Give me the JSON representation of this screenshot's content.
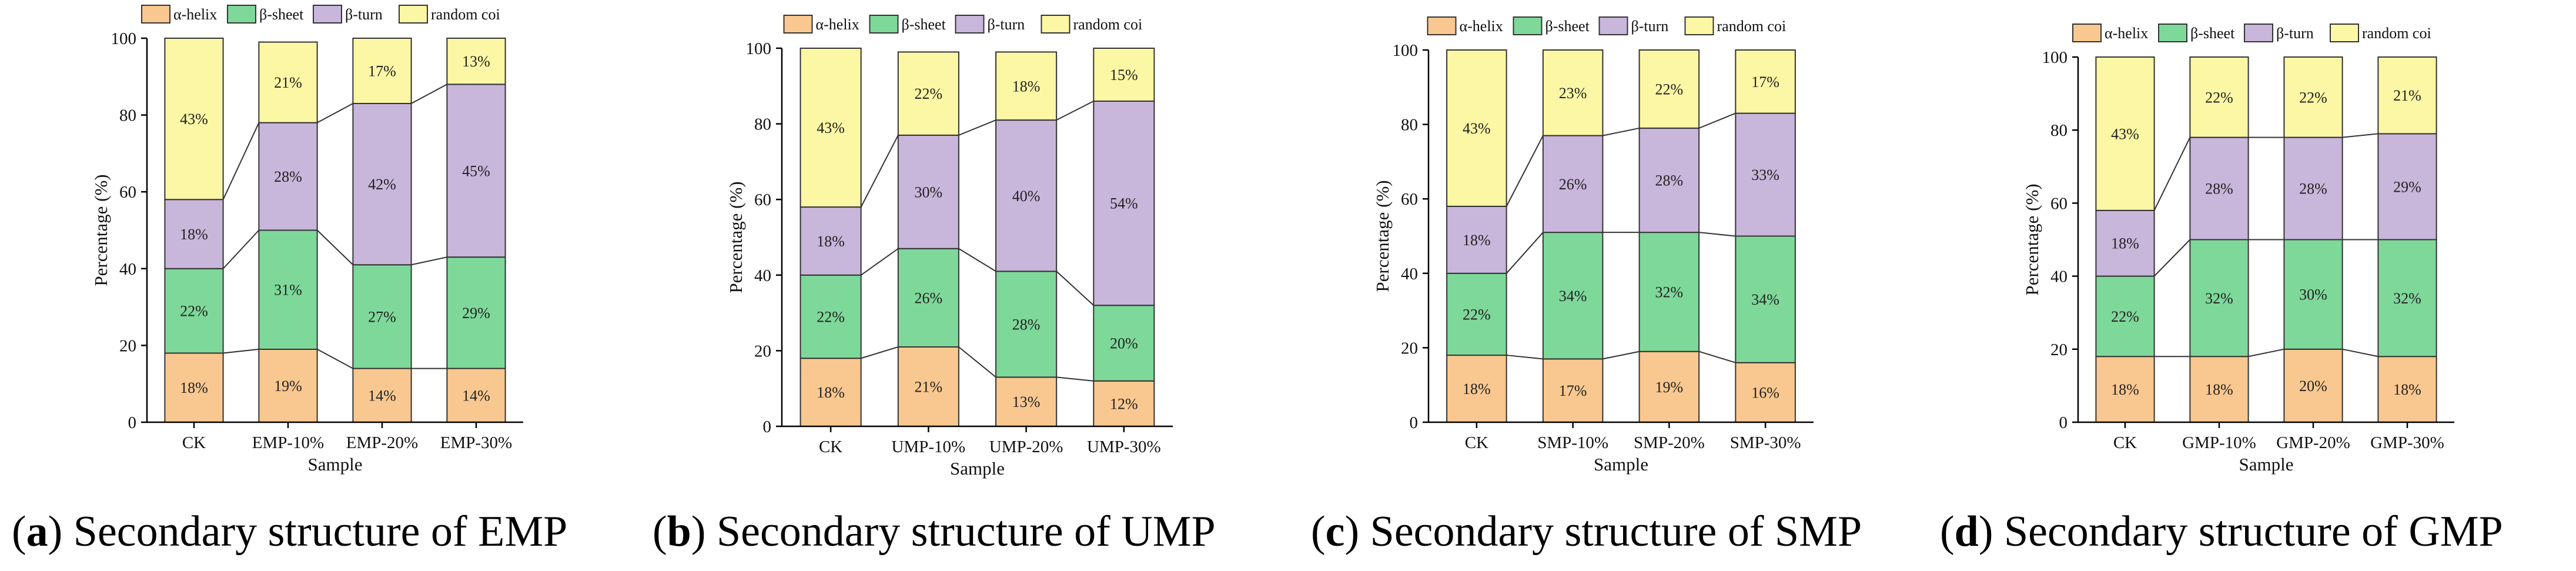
{
  "figure": {
    "captions": [
      {
        "letter": "a",
        "text": "Secondary structure of EMP"
      },
      {
        "letter": "b",
        "text": "Secondary structure of UMP"
      },
      {
        "letter": "c",
        "text": "Secondary structure of SMP"
      },
      {
        "letter": "d",
        "text": "Secondary structure of GMP"
      }
    ]
  },
  "colors": {
    "alpha_helix": "#F9C890",
    "beta_sheet": "#7ED89A",
    "beta_turn": "#C9B6DB",
    "random_coil": "#FBF7A4",
    "stroke": "#333333"
  },
  "legend_labels": [
    "α-helix",
    "β-sheet",
    "β-turn",
    "random coi"
  ],
  "chart_data": [
    {
      "type": "bar",
      "stacked": true,
      "title": "",
      "xlabel": "Sample",
      "ylabel": "Percentage (%)",
      "ylim": [
        0,
        100
      ],
      "yticks": [
        "0",
        "20",
        "40",
        "60",
        "80",
        "100"
      ],
      "categories": [
        "CK",
        "EMP-10%",
        "EMP-20%",
        "EMP-30%"
      ],
      "series": [
        {
          "name": "α-helix",
          "values": [
            18,
            19,
            14,
            14
          ],
          "labels": [
            "18%",
            "19%",
            "14%",
            "14%"
          ]
        },
        {
          "name": "β-sheet",
          "values": [
            22,
            31,
            27,
            29
          ],
          "labels": [
            "22%",
            "31%",
            "27%",
            "29%"
          ]
        },
        {
          "name": "β-turn",
          "values": [
            18,
            28,
            42,
            45
          ],
          "labels": [
            "18%",
            "28%",
            "42%",
            "45%"
          ]
        },
        {
          "name": "random coi",
          "values": [
            43,
            21,
            17,
            13
          ],
          "labels": [
            "43%",
            "21%",
            "17%",
            "13%"
          ]
        }
      ],
      "legend": "top"
    },
    {
      "type": "bar",
      "stacked": true,
      "title": "",
      "xlabel": "Sample",
      "ylabel": "Percentage (%)",
      "ylim": [
        0,
        100
      ],
      "yticks": [
        "0",
        "20",
        "40",
        "60",
        "80",
        "100"
      ],
      "categories": [
        "CK",
        "UMP-10%",
        "UMP-20%",
        "UMP-30%"
      ],
      "series": [
        {
          "name": "α-helix",
          "values": [
            18,
            21,
            13,
            12
          ],
          "labels": [
            "18%",
            "21%",
            "13%",
            "12%"
          ]
        },
        {
          "name": "β-sheet",
          "values": [
            22,
            26,
            28,
            20
          ],
          "labels": [
            "22%",
            "26%",
            "28%",
            "20%"
          ]
        },
        {
          "name": "β-turn",
          "values": [
            18,
            30,
            40,
            54
          ],
          "labels": [
            "18%",
            "30%",
            "40%",
            "54%"
          ]
        },
        {
          "name": "random coi",
          "values": [
            43,
            22,
            18,
            15
          ],
          "labels": [
            "43%",
            "22%",
            "18%",
            "15%"
          ]
        }
      ],
      "legend": "top"
    },
    {
      "type": "bar",
      "stacked": true,
      "title": "",
      "xlabel": "Sample",
      "ylabel": "Percentage (%)",
      "ylim": [
        0,
        100
      ],
      "yticks": [
        "0",
        "20",
        "40",
        "60",
        "80",
        "100"
      ],
      "categories": [
        "CK",
        "SMP-10%",
        "SMP-20%",
        "SMP-30%"
      ],
      "series": [
        {
          "name": "α-helix",
          "values": [
            18,
            17,
            19,
            16
          ],
          "labels": [
            "18%",
            "17%",
            "19%",
            "16%"
          ]
        },
        {
          "name": "β-sheet",
          "values": [
            22,
            34,
            32,
            34
          ],
          "labels": [
            "22%",
            "34%",
            "32%",
            "34%"
          ]
        },
        {
          "name": "β-turn",
          "values": [
            18,
            26,
            28,
            33
          ],
          "labels": [
            "18%",
            "26%",
            "28%",
            "33%"
          ]
        },
        {
          "name": "random coi",
          "values": [
            43,
            23,
            22,
            17
          ],
          "labels": [
            "43%",
            "23%",
            "22%",
            "17%"
          ]
        }
      ],
      "legend": "top"
    },
    {
      "type": "bar",
      "stacked": true,
      "title": "",
      "xlabel": "Sample",
      "ylabel": "Percentage (%)",
      "ylim": [
        0,
        100
      ],
      "yticks": [
        "0",
        "20",
        "40",
        "60",
        "80",
        "100"
      ],
      "categories": [
        "CK",
        "GMP-10%",
        "GMP-20%",
        "GMP-30%"
      ],
      "series": [
        {
          "name": "α-helix",
          "values": [
            18,
            18,
            20,
            18
          ],
          "labels": [
            "18%",
            "18%",
            "20%",
            "18%"
          ]
        },
        {
          "name": "β-sheet",
          "values": [
            22,
            32,
            30,
            32
          ],
          "labels": [
            "22%",
            "32%",
            "30%",
            "32%"
          ]
        },
        {
          "name": "β-turn",
          "values": [
            18,
            28,
            28,
            29
          ],
          "labels": [
            "18%",
            "28%",
            "28%",
            "29%"
          ]
        },
        {
          "name": "random coi",
          "values": [
            43,
            22,
            22,
            21
          ],
          "labels": [
            "43%",
            "22%",
            "22%",
            "21%"
          ]
        }
      ],
      "legend": "top"
    }
  ]
}
